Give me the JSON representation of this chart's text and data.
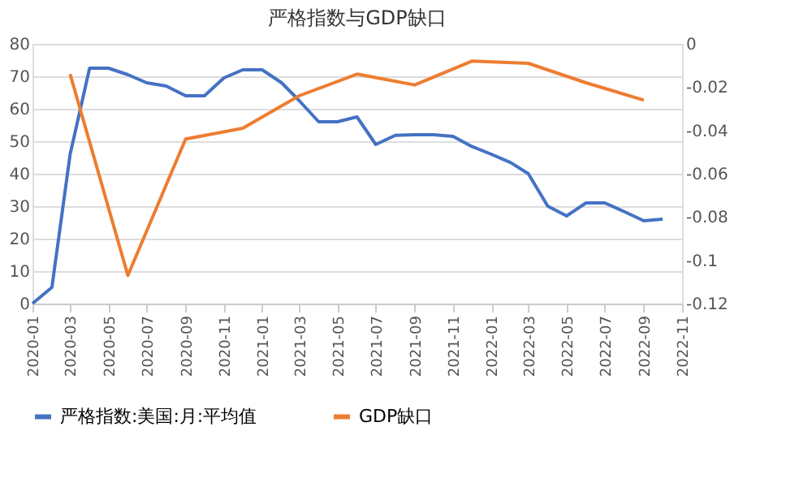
{
  "chart_data": {
    "type": "line",
    "title": "严格指数与GDP缺口",
    "series": [
      {
        "name": "严格指数:美国:月:平均值",
        "color": "#4472c4",
        "x": [
          "2020-01",
          "2020-02",
          "2020-03",
          "2020-04",
          "2020-05",
          "2020-06",
          "2020-07",
          "2020-08",
          "2020-09",
          "2020-10",
          "2020-11",
          "2020-12",
          "2021-01",
          "2021-02",
          "2021-03",
          "2021-04",
          "2021-05",
          "2021-06",
          "2021-07",
          "2021-08",
          "2021-09",
          "2021-10",
          "2021-11",
          "2021-12",
          "2022-01",
          "2022-02",
          "2022-03",
          "2022-04",
          "2022-05",
          "2022-06",
          "2022-07",
          "2022-08",
          "2022-09",
          "2022-10"
        ],
        "values": [
          0,
          5,
          46,
          72.5,
          72.5,
          70.5,
          68,
          67,
          64,
          64,
          69.5,
          72,
          72,
          68,
          62.5,
          56,
          56,
          57.5,
          49,
          51.8,
          52,
          52,
          51.5,
          48.4,
          46,
          43.4,
          40,
          30,
          27,
          31,
          31,
          28.3,
          25.5,
          26
        ]
      },
      {
        "name": "GDP缺口",
        "color": "#ed7d31",
        "axis": "y2",
        "x": [
          "2020-03",
          "2020-06",
          "2020-09",
          "2020-12",
          "2021-03",
          "2021-06",
          "2021-09",
          "2021-12",
          "2022-03",
          "2022-06",
          "2022-09"
        ],
        "values": [
          -0.014,
          -0.107,
          -0.044,
          -0.039,
          -0.024,
          -0.014,
          -0.019,
          -0.008,
          -0.009,
          -0.018,
          -0.026
        ]
      }
    ],
    "xlim": [
      "2020-01",
      "2022-11"
    ],
    "xticks": [
      "2020-01",
      "2020-03",
      "2020-05",
      "2020-07",
      "2020-09",
      "2020-11",
      "2021-01",
      "2021-03",
      "2021-05",
      "2021-07",
      "2021-09",
      "2021-11",
      "2022-01",
      "2022-03",
      "2022-05",
      "2022-07",
      "2022-09",
      "2022-11"
    ],
    "ylim": [
      0,
      80
    ],
    "yticks": [
      0,
      10,
      20,
      30,
      40,
      50,
      60,
      70,
      80
    ],
    "y2lim": [
      -0.12,
      0
    ],
    "y2ticks": [
      -0.12,
      -0.1,
      -0.08,
      -0.06,
      -0.04,
      -0.02,
      0
    ],
    "grid": "y",
    "legend": "bottom",
    "line_style": "solid",
    "marker": "none"
  }
}
